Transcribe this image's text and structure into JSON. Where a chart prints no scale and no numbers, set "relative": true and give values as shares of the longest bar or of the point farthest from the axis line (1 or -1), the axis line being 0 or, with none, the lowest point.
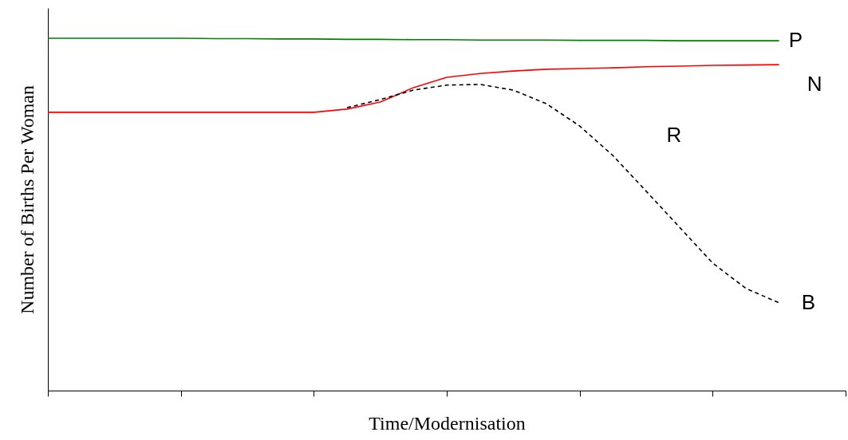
{
  "chart_data": {
    "type": "line",
    "relative": true,
    "xlabel": "Time/Modernisation",
    "ylabel": "Number of Births Per Woman",
    "grid": false,
    "marker": "none",
    "tick_labels": false,
    "categories": [
      null,
      null,
      null,
      null,
      null,
      null,
      null,
      null,
      null,
      null,
      null,
      null,
      null,
      null,
      null,
      null,
      null,
      null,
      null,
      null,
      null,
      null,
      null,
      null,
      null
    ],
    "series": [
      {
        "name": "P",
        "color": "#008000",
        "line_style": "solid",
        "values": [
          1.0,
          1.0,
          1.0,
          1.0,
          1.0,
          0.999,
          0.999,
          0.998,
          0.998,
          0.997,
          0.997,
          0.996,
          0.996,
          0.995,
          0.995,
          0.995,
          0.994,
          0.994,
          0.994,
          0.993,
          0.993,
          0.993,
          0.993,
          null,
          null
        ]
      },
      {
        "name": "N",
        "color": "#ff0000",
        "line_style": "solid",
        "values": [
          0.79,
          0.79,
          0.79,
          0.79,
          0.79,
          0.79,
          0.79,
          0.79,
          0.79,
          0.799,
          0.819,
          0.86,
          0.889,
          0.9,
          0.907,
          0.912,
          0.914,
          0.916,
          0.919,
          0.921,
          0.923,
          0.924,
          0.925,
          null,
          null
        ]
      },
      {
        "name": "B",
        "color": "#000000",
        "line_style": "dashed",
        "values": [
          null,
          null,
          null,
          null,
          null,
          null,
          null,
          null,
          null,
          0.803,
          0.826,
          0.853,
          0.867,
          0.869,
          0.853,
          0.814,
          0.751,
          0.667,
          0.566,
          0.464,
          0.362,
          0.29,
          0.249,
          null,
          null
        ]
      }
    ],
    "annotations": [
      "R"
    ]
  }
}
